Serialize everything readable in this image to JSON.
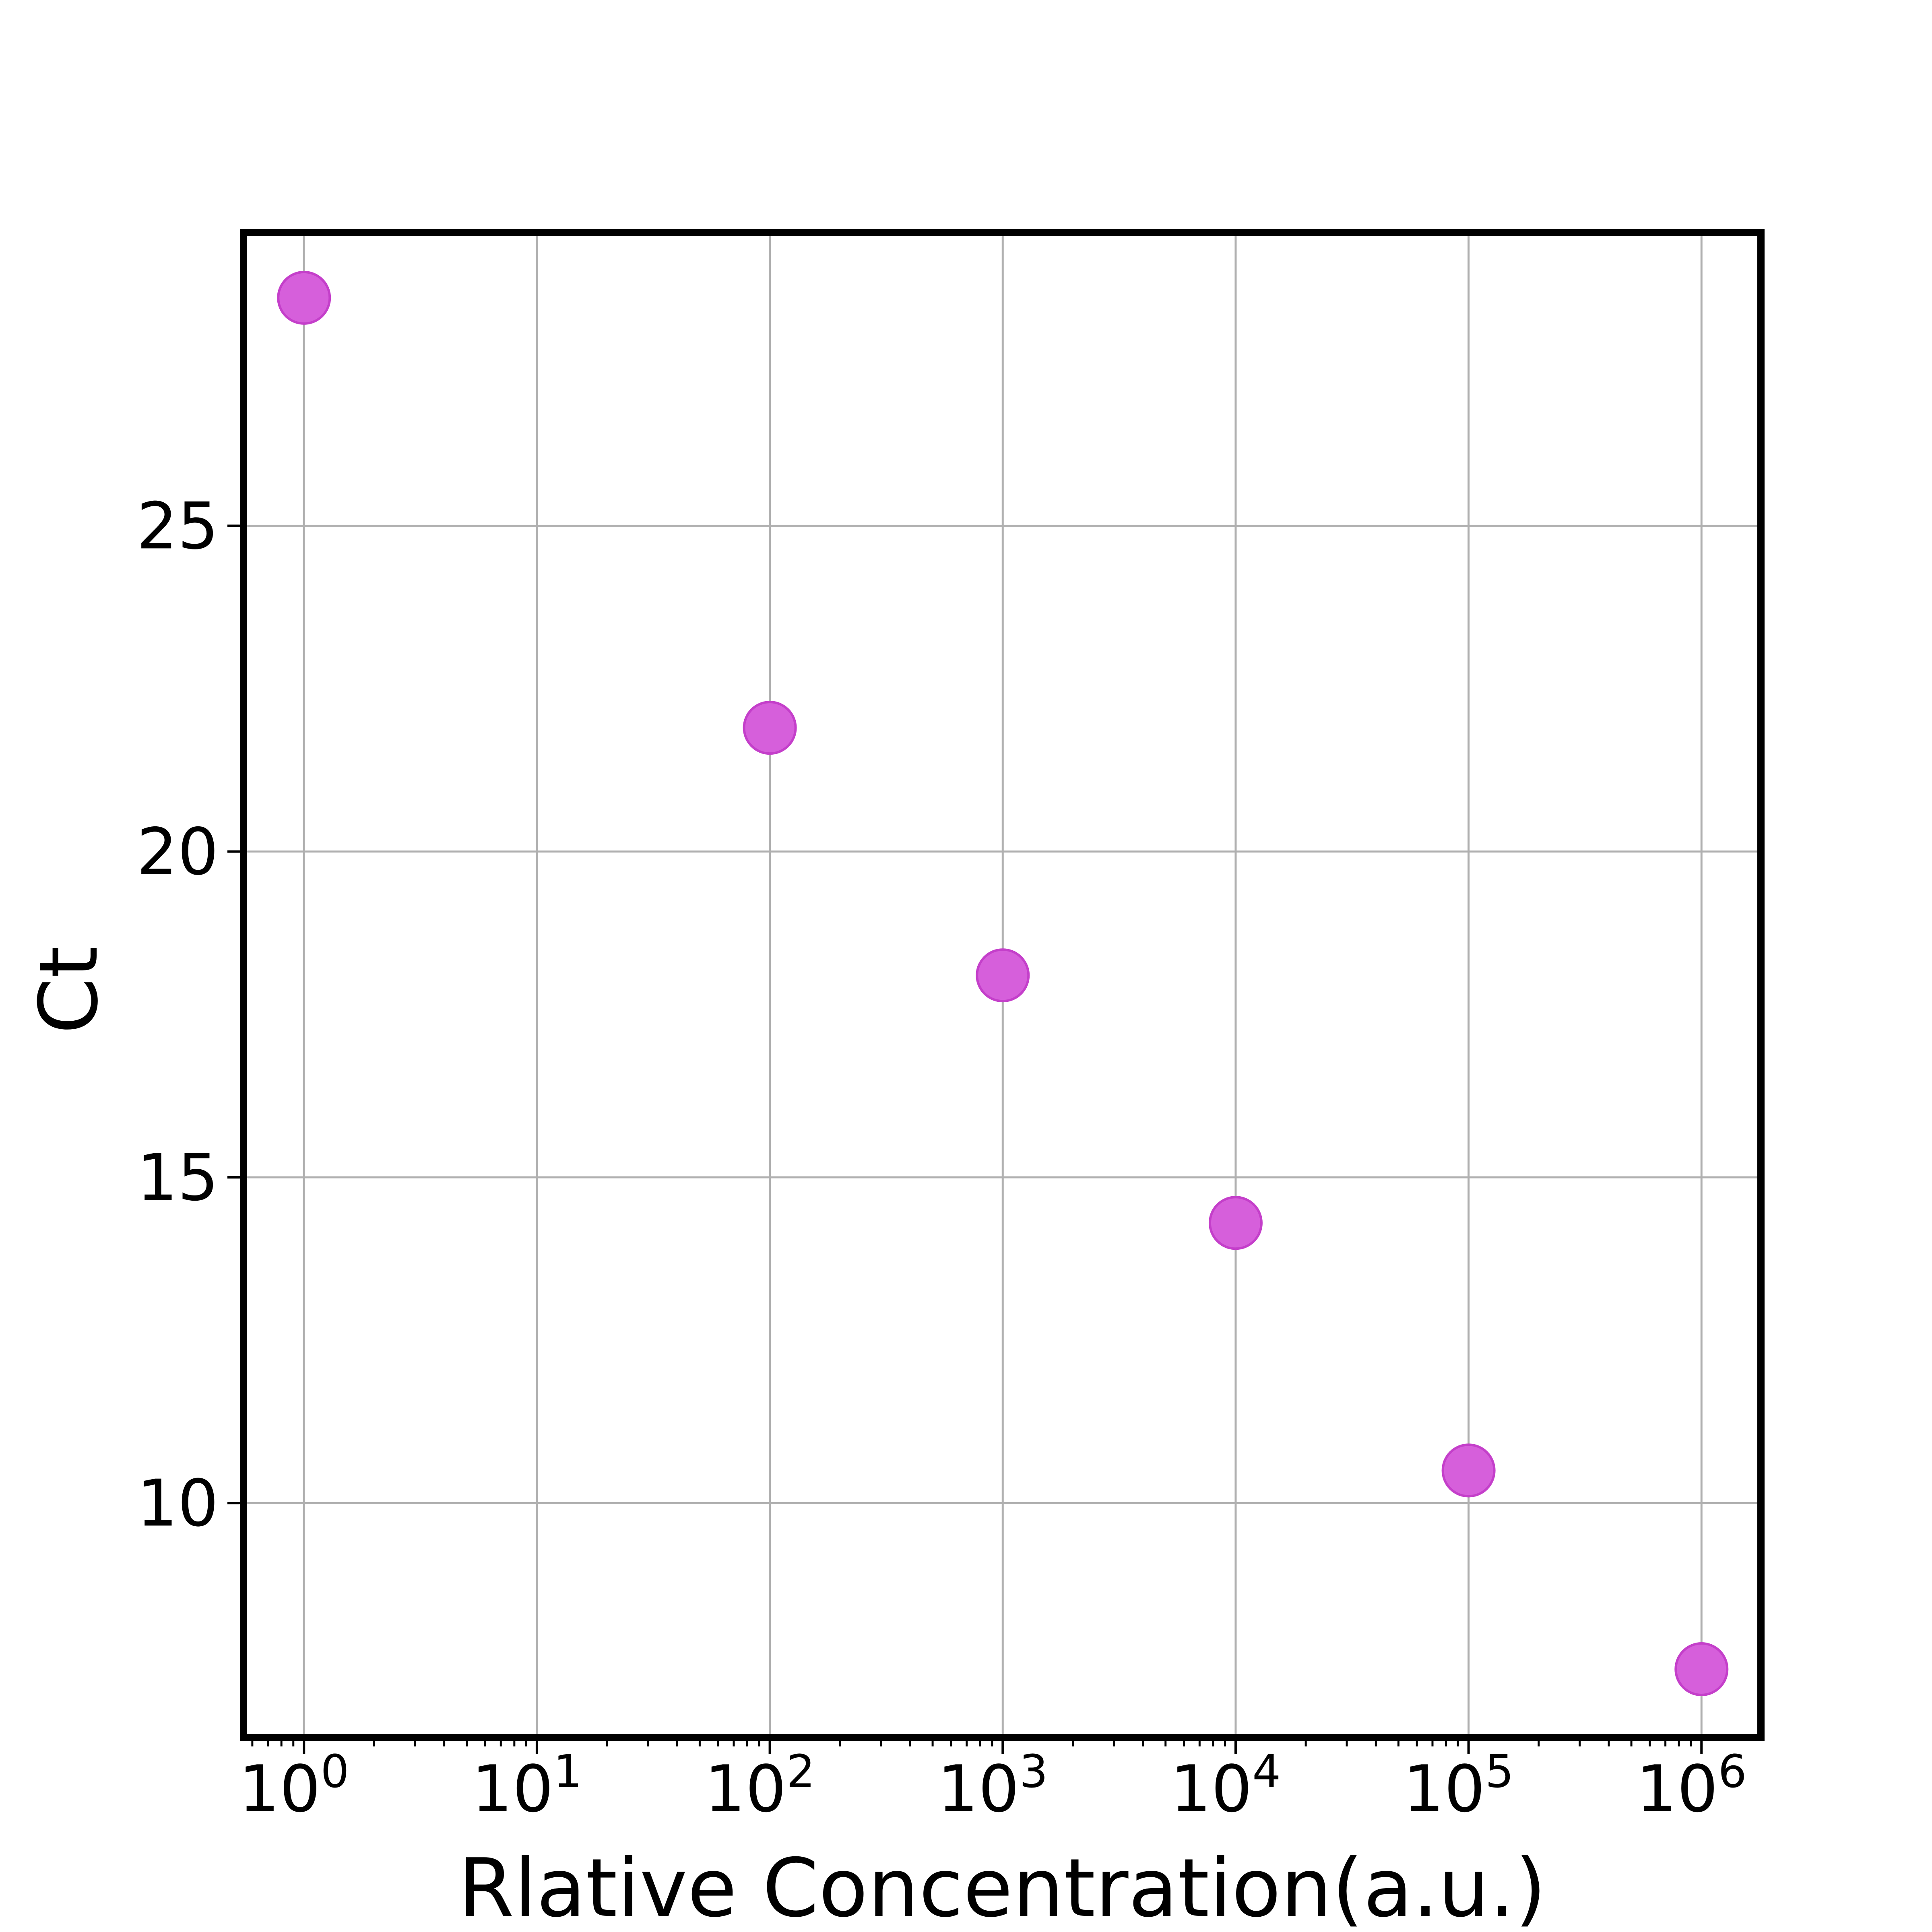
{
  "chart_data": {
    "type": "scatter",
    "xlabel": "Rlative Concentration(a.u.)",
    "ylabel": "Ct",
    "x_scale": "log",
    "xlim": [
      0.55,
      1800000
    ],
    "ylim": [
      6.4,
      29.5
    ],
    "x_ticks": [
      1,
      10,
      100,
      1000,
      10000,
      100000,
      1000000
    ],
    "x_tick_labels": [
      {
        "base": "10",
        "exp": "0"
      },
      {
        "base": "10",
        "exp": "1"
      },
      {
        "base": "10",
        "exp": "2"
      },
      {
        "base": "10",
        "exp": "3"
      },
      {
        "base": "10",
        "exp": "4"
      },
      {
        "base": "10",
        "exp": "5"
      },
      {
        "base": "10",
        "exp": "6"
      }
    ],
    "y_ticks": [
      10,
      15,
      20,
      25
    ],
    "y_tick_labels": [
      "10",
      "15",
      "20",
      "25"
    ],
    "grid": true,
    "series": [
      {
        "x": [
          1,
          100,
          1000,
          10000,
          100000,
          1000000
        ],
        "y": [
          28.5,
          21.9,
          18.1,
          14.3,
          10.5,
          7.45
        ],
        "color": "#d65fdb",
        "edge_color": "#c43fca"
      }
    ]
  }
}
